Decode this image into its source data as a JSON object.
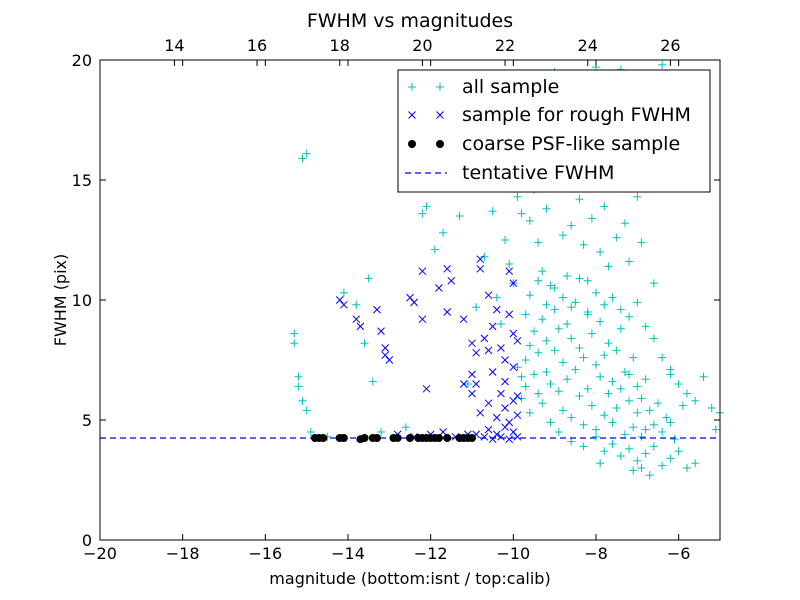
{
  "chart_data": {
    "type": "scatter",
    "title": "FWHM vs magnitudes",
    "xlabel": "magnitude (bottom:isnt / top:calib)",
    "ylabel": "FWHM (pix)",
    "xlim": [
      -20,
      -5
    ],
    "ylim": [
      0,
      20
    ],
    "x_ticks": [
      "−20",
      "−18",
      "−16",
      "−14",
      "−12",
      "−10",
      "−8",
      "−6"
    ],
    "x_tick_values": [
      -20,
      -18,
      -16,
      -14,
      -12,
      -10,
      -8,
      -6
    ],
    "top_ticks": [
      "14",
      "16",
      "18",
      "20",
      "22",
      "24",
      "26"
    ],
    "top_tick_values": [
      -18.2,
      -16.2,
      -14.2,
      -12.2,
      -10.2,
      -8.2,
      -6.2
    ],
    "y_ticks": [
      "0",
      "5",
      "10",
      "15",
      "20"
    ],
    "y_tick_values": [
      0,
      5,
      10,
      15,
      20
    ],
    "grid": false,
    "legend_position": "top-right",
    "series_colors": {
      "all": "#00bfbf",
      "rough": "#0000ff",
      "psf": "#000000",
      "tentative": "#0000ff"
    },
    "tentative_fwhm": 4.25,
    "series": [
      {
        "name": "all sample",
        "marker": "plus",
        "points": [
          [
            -15.3,
            8.6
          ],
          [
            -15.3,
            8.2
          ],
          [
            -15.2,
            6.8
          ],
          [
            -15.2,
            6.4
          ],
          [
            -15.1,
            5.8
          ],
          [
            -15.1,
            15.9
          ],
          [
            -15.0,
            16.1
          ],
          [
            -15.0,
            5.4
          ],
          [
            -14.9,
            4.5
          ],
          [
            -14.5,
            4.3
          ],
          [
            -14.1,
            10.3
          ],
          [
            -13.8,
            9.8
          ],
          [
            -13.6,
            8.2
          ],
          [
            -13.5,
            10.9
          ],
          [
            -13.4,
            6.6
          ],
          [
            -13.2,
            4.5
          ],
          [
            -12.6,
            4.7
          ],
          [
            -12.2,
            13.6
          ],
          [
            -12.1,
            13.9
          ],
          [
            -11.9,
            12.1
          ],
          [
            -11.7,
            12.8
          ],
          [
            -11.3,
            13.5
          ],
          [
            -11.1,
            6.5
          ],
          [
            -10.9,
            9.7
          ],
          [
            -10.7,
            11.8
          ],
          [
            -10.5,
            13.7
          ],
          [
            -10.4,
            10.1
          ],
          [
            -10.3,
            9.0
          ],
          [
            -10.2,
            12.5
          ],
          [
            -10.1,
            11.5
          ],
          [
            -10.0,
            10.7
          ],
          [
            -9.9,
            14.3
          ],
          [
            -9.8,
            13.6
          ],
          [
            -9.7,
            9.4
          ],
          [
            -9.6,
            13.3
          ],
          [
            -9.5,
            14.6
          ],
          [
            -9.4,
            12.4
          ],
          [
            -9.3,
            11.2
          ],
          [
            -9.2,
            13.8
          ],
          [
            -9.1,
            10.6
          ],
          [
            -9.0,
            19.5
          ],
          [
            -8.9,
            14.9
          ],
          [
            -8.8,
            12.7
          ],
          [
            -8.7,
            11.0
          ],
          [
            -8.6,
            13.1
          ],
          [
            -8.5,
            18.8
          ],
          [
            -8.4,
            14.2
          ],
          [
            -8.3,
            12.3
          ],
          [
            -8.2,
            10.8
          ],
          [
            -8.1,
            13.4
          ],
          [
            -8.0,
            19.7
          ],
          [
            -7.9,
            12.0
          ],
          [
            -7.8,
            13.9
          ],
          [
            -7.7,
            11.4
          ],
          [
            -7.6,
            17.8
          ],
          [
            -7.5,
            12.6
          ],
          [
            -7.4,
            19.6
          ],
          [
            -7.3,
            13.2
          ],
          [
            -7.2,
            11.6
          ],
          [
            -7.0,
            14.3
          ],
          [
            -6.9,
            12.4
          ],
          [
            -6.6,
            10.7
          ],
          [
            -6.4,
            19.8
          ],
          [
            -6.2,
            6.9
          ],
          [
            -5.9,
            5.6
          ],
          [
            -5.6,
            5.8
          ],
          [
            -5.4,
            6.8
          ],
          [
            -5.2,
            5.5
          ],
          [
            -5.1,
            4.6
          ],
          [
            -5.0,
            5.3
          ],
          [
            -9.9,
            7.2
          ],
          [
            -9.8,
            6.8
          ],
          [
            -9.8,
            5.9
          ],
          [
            -9.7,
            7.5
          ],
          [
            -9.7,
            6.4
          ],
          [
            -9.6,
            8.1
          ],
          [
            -9.6,
            5.3
          ],
          [
            -9.5,
            6.9
          ],
          [
            -9.5,
            8.7
          ],
          [
            -9.4,
            7.8
          ],
          [
            -9.4,
            6.1
          ],
          [
            -9.3,
            9.2
          ],
          [
            -9.3,
            5.7
          ],
          [
            -9.2,
            7.0
          ],
          [
            -9.2,
            8.3
          ],
          [
            -9.1,
            6.5
          ],
          [
            -9.1,
            4.9
          ],
          [
            -9.0,
            7.9
          ],
          [
            -9.0,
            9.6
          ],
          [
            -8.9,
            6.2
          ],
          [
            -8.9,
            8.8
          ],
          [
            -8.8,
            5.4
          ],
          [
            -8.8,
            7.4
          ],
          [
            -8.7,
            9.0
          ],
          [
            -8.7,
            6.7
          ],
          [
            -8.6,
            8.4
          ],
          [
            -8.6,
            5.1
          ],
          [
            -8.5,
            7.1
          ],
          [
            -8.5,
            9.9
          ],
          [
            -8.4,
            6.0
          ],
          [
            -8.4,
            8.0
          ],
          [
            -8.3,
            4.8
          ],
          [
            -8.3,
            7.6
          ],
          [
            -8.2,
            9.4
          ],
          [
            -8.2,
            6.3
          ],
          [
            -8.1,
            5.6
          ],
          [
            -8.1,
            8.6
          ],
          [
            -8.0,
            7.3
          ],
          [
            -8.0,
            4.6
          ],
          [
            -7.9,
            6.8
          ],
          [
            -7.9,
            9.1
          ],
          [
            -7.8,
            5.2
          ],
          [
            -7.8,
            7.7
          ],
          [
            -7.7,
            6.1
          ],
          [
            -7.7,
            8.2
          ],
          [
            -7.6,
            4.9
          ],
          [
            -7.6,
            6.6
          ],
          [
            -7.5,
            7.9
          ],
          [
            -7.5,
            5.5
          ],
          [
            -7.4,
            6.3
          ],
          [
            -7.4,
            8.8
          ],
          [
            -7.3,
            4.4
          ],
          [
            -7.3,
            7.0
          ],
          [
            -7.2,
            5.8
          ],
          [
            -7.2,
            6.9
          ],
          [
            -7.1,
            4.7
          ],
          [
            -7.1,
            7.6
          ],
          [
            -7.0,
            5.3
          ],
          [
            -7.0,
            6.4
          ],
          [
            -6.9,
            4.3
          ],
          [
            -6.9,
            5.9
          ],
          [
            -6.8,
            6.7
          ],
          [
            -6.8,
            4.6
          ],
          [
            -6.7,
            5.4
          ],
          [
            -6.6,
            4.8
          ],
          [
            -6.5,
            5.7
          ],
          [
            -6.4,
            4.5
          ],
          [
            -6.3,
            5.1
          ],
          [
            -6.2,
            4.9
          ],
          [
            -6.1,
            4.2
          ],
          [
            -8.9,
            4.5
          ],
          [
            -8.6,
            4.1
          ],
          [
            -8.3,
            3.9
          ],
          [
            -8.0,
            4.3
          ],
          [
            -7.8,
            3.7
          ],
          [
            -7.6,
            4.0
          ],
          [
            -7.4,
            3.5
          ],
          [
            -7.2,
            3.8
          ],
          [
            -7.0,
            3.3
          ],
          [
            -6.8,
            3.6
          ],
          [
            -6.6,
            3.9
          ],
          [
            -6.4,
            3.1
          ],
          [
            -6.2,
            3.4
          ],
          [
            -6.0,
            3.7
          ],
          [
            -5.8,
            3.0
          ],
          [
            -5.6,
            3.2
          ],
          [
            -7.9,
            3.2
          ],
          [
            -7.1,
            2.9
          ],
          [
            -6.7,
            2.7
          ],
          [
            -6.9,
            3.0
          ],
          [
            -9.6,
            10.2
          ],
          [
            -9.4,
            10.8
          ],
          [
            -9.2,
            9.8
          ],
          [
            -9.0,
            10.5
          ],
          [
            -8.8,
            10.1
          ],
          [
            -8.6,
            9.7
          ],
          [
            -8.4,
            10.9
          ],
          [
            -8.2,
            9.5
          ],
          [
            -8.0,
            10.3
          ],
          [
            -7.8,
            9.8
          ],
          [
            -7.6,
            10.1
          ],
          [
            -7.4,
            9.6
          ],
          [
            -7.2,
            9.3
          ],
          [
            -7.0,
            9.9
          ],
          [
            -6.8,
            8.9
          ],
          [
            -6.6,
            8.4
          ],
          [
            -6.4,
            7.6
          ],
          [
            -6.2,
            7.1
          ],
          [
            -6.0,
            6.5
          ],
          [
            -5.8,
            6.1
          ]
        ]
      },
      {
        "name": "sample for rough FWHM",
        "marker": "x",
        "points": [
          [
            -14.2,
            10.0
          ],
          [
            -14.1,
            9.8
          ],
          [
            -13.8,
            9.2
          ],
          [
            -13.7,
            8.9
          ],
          [
            -13.3,
            9.6
          ],
          [
            -13.2,
            8.7
          ],
          [
            -13.1,
            8.0
          ],
          [
            -13.1,
            7.7
          ],
          [
            -13.0,
            7.5
          ],
          [
            -12.5,
            10.1
          ],
          [
            -12.4,
            9.9
          ],
          [
            -12.2,
            11.2
          ],
          [
            -12.2,
            9.2
          ],
          [
            -12.1,
            6.3
          ],
          [
            -11.8,
            10.5
          ],
          [
            -11.6,
            11.3
          ],
          [
            -11.6,
            9.5
          ],
          [
            -11.5,
            10.8
          ],
          [
            -11.2,
            9.2
          ],
          [
            -11.0,
            8.2
          ],
          [
            -10.9,
            7.8
          ],
          [
            -11.0,
            6.9
          ],
          [
            -11.0,
            6.1
          ],
          [
            -10.8,
            11.3
          ],
          [
            -10.8,
            11.7
          ],
          [
            -10.6,
            10.2
          ],
          [
            -10.5,
            8.9
          ],
          [
            -10.4,
            9.6
          ],
          [
            -10.3,
            8.0
          ],
          [
            -10.2,
            7.5
          ],
          [
            -10.2,
            6.6
          ],
          [
            -10.1,
            11.2
          ],
          [
            -10.1,
            9.4
          ],
          [
            -10.0,
            10.7
          ],
          [
            -10.0,
            8.6
          ],
          [
            -10.0,
            7.2
          ],
          [
            -9.9,
            8.3
          ],
          [
            -9.9,
            6.0
          ],
          [
            -12.8,
            4.4
          ],
          [
            -12.4,
            4.3
          ],
          [
            -12.0,
            4.4
          ],
          [
            -11.7,
            4.5
          ],
          [
            -11.4,
            4.3
          ],
          [
            -11.1,
            4.4
          ],
          [
            -10.9,
            4.4
          ],
          [
            -10.7,
            4.3
          ],
          [
            -10.6,
            4.6
          ],
          [
            -10.5,
            4.2
          ],
          [
            -10.4,
            4.4
          ],
          [
            -10.3,
            4.3
          ],
          [
            -10.2,
            4.7
          ],
          [
            -10.1,
            4.2
          ],
          [
            -10.0,
            4.5
          ],
          [
            -9.9,
            4.3
          ],
          [
            -11.2,
            6.5
          ],
          [
            -10.8,
            5.3
          ],
          [
            -10.9,
            6.5
          ],
          [
            -10.6,
            5.7
          ],
          [
            -10.4,
            5.1
          ],
          [
            -10.3,
            6.1
          ],
          [
            -10.2,
            5.5
          ],
          [
            -10.1,
            4.9
          ],
          [
            -10.0,
            5.8
          ],
          [
            -9.9,
            5.2
          ],
          [
            -10.5,
            7.0
          ],
          [
            -10.7,
            8.4
          ],
          [
            -10.6,
            7.9
          ]
        ]
      },
      {
        "name": "coarse PSF-like sample",
        "marker": "dot",
        "points": [
          [
            -14.8,
            4.25
          ],
          [
            -14.7,
            4.25
          ],
          [
            -14.6,
            4.25
          ],
          [
            -14.2,
            4.25
          ],
          [
            -14.1,
            4.25
          ],
          [
            -13.7,
            4.2
          ],
          [
            -13.6,
            4.25
          ],
          [
            -13.4,
            4.25
          ],
          [
            -13.3,
            4.25
          ],
          [
            -12.9,
            4.25
          ],
          [
            -12.8,
            4.25
          ],
          [
            -12.5,
            4.25
          ],
          [
            -12.3,
            4.25
          ],
          [
            -12.2,
            4.25
          ],
          [
            -12.1,
            4.25
          ],
          [
            -12.0,
            4.25
          ],
          [
            -11.9,
            4.25
          ],
          [
            -11.8,
            4.25
          ],
          [
            -11.6,
            4.25
          ],
          [
            -11.3,
            4.25
          ],
          [
            -11.2,
            4.25
          ],
          [
            -11.1,
            4.25
          ],
          [
            -11.0,
            4.25
          ]
        ]
      },
      {
        "name": "tentative FWHM",
        "marker": "dashed-line",
        "value": 4.25
      }
    ]
  }
}
